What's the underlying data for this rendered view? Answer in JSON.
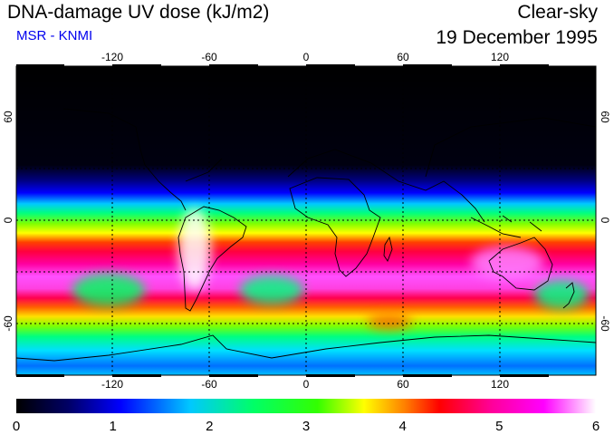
{
  "header": {
    "title": "DNA-damage UV dose (kJ/m2)",
    "subtitle": "MSR - KNMI",
    "product": "Clear-sky",
    "date": "19 December 1995"
  },
  "axes": {
    "lon_ticks": [
      "-120",
      "-60",
      "0",
      "60",
      "120"
    ],
    "lat_ticks": [
      "60",
      "0",
      "-60"
    ]
  },
  "colorbar": {
    "labels": [
      "0",
      "1",
      "2",
      "3",
      "4",
      "5",
      "6"
    ],
    "colors": [
      "#000000",
      "#000066",
      "#0000ff",
      "#00c8ff",
      "#00ff66",
      "#33ff00",
      "#ffff00",
      "#ff8000",
      "#ff0000",
      "#ff0099",
      "#ff00ff",
      "#ffffff"
    ]
  }
}
